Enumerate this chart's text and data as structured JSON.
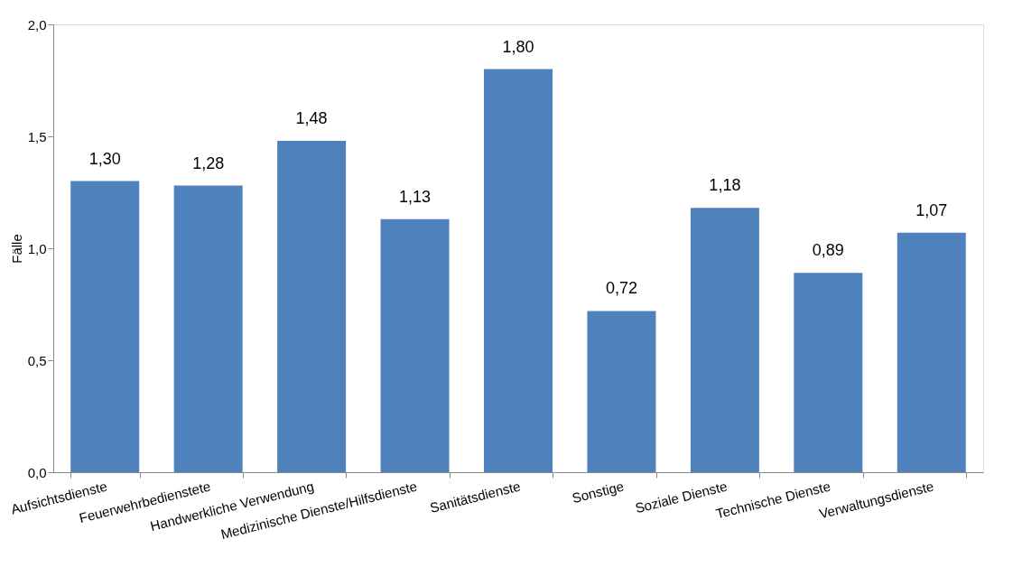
{
  "chart_data": {
    "type": "bar",
    "ylabel": "Fälle",
    "categories": [
      "Aufsichtsdienste",
      "Feuerwehrbedienstete",
      "Handwerkliche Verwendung",
      "Medizinische Dienste/Hilfsdienste",
      "Sanitätsdienste",
      "Sonstige",
      "Soziale Dienste",
      "Technische Dienste",
      "Verwaltungsdienste"
    ],
    "values": [
      1.3,
      1.28,
      1.48,
      1.13,
      1.8,
      0.72,
      1.18,
      0.89,
      1.07
    ],
    "value_labels": [
      "1,30",
      "1,28",
      "1,48",
      "1,13",
      "1,80",
      "0,72",
      "1,18",
      "0,89",
      "1,07"
    ],
    "color": "#4f81bd",
    "ylim": [
      0,
      2
    ],
    "yticks": [
      {
        "value": 0,
        "label": "0,0"
      },
      {
        "value": 0.5,
        "label": "0,5"
      },
      {
        "value": 1,
        "label": "1,0"
      },
      {
        "value": 1.5,
        "label": "1,5"
      },
      {
        "value": 2,
        "label": "2,0"
      }
    ],
    "grid": false
  }
}
